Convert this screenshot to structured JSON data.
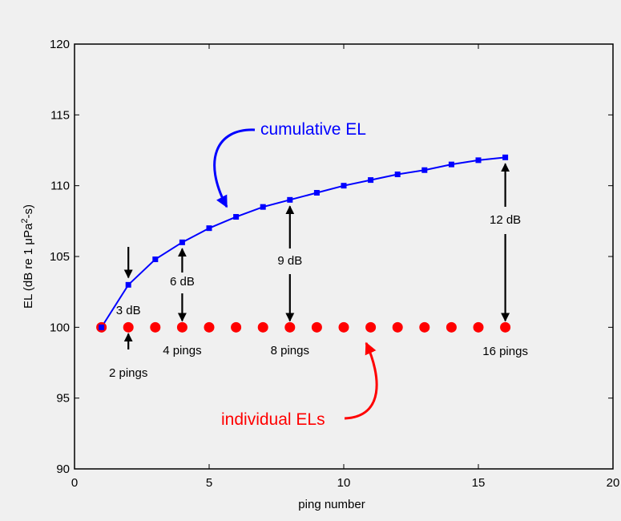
{
  "chart_data": {
    "type": "line",
    "title": "",
    "xlabel": "ping number",
    "ylabel": "EL (dB re  1 μPa²-s)",
    "ylabel_parts": {
      "prefix": "EL (dB re  1 μPa",
      "sup": "2",
      "suffix": "-s)"
    },
    "xlim": [
      0,
      20
    ],
    "ylim": [
      90,
      120
    ],
    "x_ticks": [
      0,
      5,
      10,
      15,
      20
    ],
    "y_ticks": [
      90,
      95,
      100,
      105,
      110,
      115,
      120
    ],
    "x_tick_labels": [
      "0",
      "5",
      "10",
      "15",
      "20"
    ],
    "y_tick_labels": [
      "90",
      "95",
      "100",
      "105",
      "110",
      "115",
      "120"
    ],
    "grid": false,
    "colors": {
      "cumulative": "#0000ff",
      "individual": "#ff0000",
      "background": "#f0f0f0"
    },
    "series": [
      {
        "name": "cumulative EL",
        "style": "line-with-square-markers",
        "x": [
          1,
          2,
          3,
          4,
          5,
          6,
          7,
          8,
          9,
          10,
          11,
          12,
          13,
          14,
          15,
          16
        ],
        "y": [
          100,
          103.0,
          104.8,
          106.0,
          107.0,
          107.8,
          108.5,
          109.0,
          109.5,
          110.0,
          110.4,
          110.8,
          111.1,
          111.5,
          111.8,
          112.0
        ]
      },
      {
        "name": "individual ELs",
        "style": "circle-markers",
        "x": [
          1,
          2,
          3,
          4,
          5,
          6,
          7,
          8,
          9,
          10,
          11,
          12,
          13,
          14,
          15,
          16
        ],
        "y": [
          100,
          100,
          100,
          100,
          100,
          100,
          100,
          100,
          100,
          100,
          100,
          100,
          100,
          100,
          100,
          100
        ]
      }
    ],
    "annotations": {
      "ping_2": {
        "pings": "2 pings",
        "db": "3 dB"
      },
      "ping_4": {
        "pings": "4 pings",
        "db": "6 dB"
      },
      "ping_8": {
        "pings": "8 pings",
        "db": "9 dB"
      },
      "ping_16": {
        "pings": "16 pings",
        "db": "12 dB"
      }
    }
  }
}
